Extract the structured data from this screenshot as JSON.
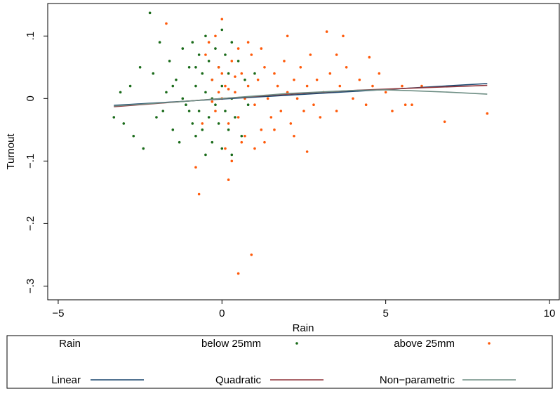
{
  "chart_data": {
    "type": "scatter",
    "x_label": "Rain",
    "y_label": "Turnout",
    "xlim": [
      -5.32,
      10.3
    ],
    "ylim": [
      -0.322,
      0.152
    ],
    "xticks": [
      {
        "value": -5,
        "label": "−5"
      },
      0,
      5,
      10
    ],
    "yticks": [
      {
        "value": -0.3,
        "label": "−.3"
      },
      {
        "value": -0.2,
        "label": "−.2"
      },
      {
        "value": -0.1,
        "label": "−.1"
      },
      0,
      {
        "value": 0.1,
        "label": ".1"
      }
    ],
    "legend_title": "Rain",
    "series": [
      {
        "name": "below 25mm",
        "type": "scatter",
        "color": "#1a6b1a",
        "x": [
          -2.2,
          -3.3,
          -3.0,
          -2.8,
          -2.5,
          -2.4,
          -2.1,
          -1.9,
          -1.8,
          -1.7,
          -1.6,
          -1.5,
          -1.4,
          -1.3,
          -1.2,
          -1.1,
          -1.0,
          -0.9,
          -0.9,
          -0.8,
          -0.8,
          -0.7,
          -0.7,
          -0.6,
          -0.6,
          -0.5,
          -0.5,
          -0.4,
          -0.4,
          -0.3,
          -0.3,
          -0.2,
          -0.2,
          -0.1,
          -0.1,
          0.0,
          0.0,
          0.1,
          0.1,
          0.2,
          0.2,
          0.3,
          0.3,
          0.4,
          0.5,
          0.6,
          0.7,
          0.8,
          1.0,
          -2.7,
          -3.1,
          -2.0,
          -1.5,
          -1.0,
          -0.5,
          0.0,
          0.3,
          -1.2,
          -0.8,
          -0.3
        ],
        "values": [
          0.137,
          -0.03,
          -0.04,
          0.02,
          0.05,
          -0.08,
          0.04,
          0.09,
          -0.02,
          0.01,
          0.06,
          -0.05,
          0.03,
          -0.07,
          0.08,
          -0.01,
          0.05,
          -0.04,
          0.09,
          0.02,
          -0.06,
          0.07,
          -0.02,
          0.04,
          -0.05,
          0.1,
          0.01,
          -0.03,
          0.06,
          -0.07,
          0.03,
          0.08,
          -0.01,
          0.05,
          -0.04,
          0.02,
          -0.08,
          0.07,
          -0.02,
          0.04,
          -0.05,
          0.09,
          0.0,
          -0.03,
          0.06,
          -0.06,
          0.03,
          -0.01,
          0.04,
          -0.06,
          0.01,
          -0.03,
          0.02,
          -0.02,
          -0.09,
          0.11,
          -0.09,
          0.0,
          0.05,
          0.0
        ]
      },
      {
        "name": "above 25mm",
        "type": "scatter",
        "color": "#ff5a0a",
        "x": [
          0.5,
          0.9,
          -0.7,
          0.0,
          -1.7,
          6.8,
          8.1,
          5.6,
          4.5,
          3.2,
          3.7,
          2.0,
          -0.5,
          -0.3,
          -0.2,
          -0.1,
          0.0,
          0.1,
          0.2,
          0.3,
          0.4,
          0.5,
          0.6,
          0.7,
          0.8,
          0.9,
          1.0,
          1.1,
          1.2,
          1.3,
          1.4,
          1.5,
          1.6,
          1.7,
          1.8,
          1.9,
          2.0,
          2.1,
          2.2,
          2.3,
          2.4,
          2.5,
          2.6,
          2.7,
          2.8,
          2.9,
          3.0,
          3.1,
          3.3,
          3.5,
          3.6,
          3.8,
          4.0,
          4.2,
          4.4,
          4.6,
          4.8,
          5.0,
          5.2,
          5.5,
          5.8,
          6.1,
          -0.6,
          -0.4,
          -0.2,
          0.1,
          0.3,
          0.6,
          0.8,
          1.0,
          -0.8,
          0.2,
          1.3,
          1.6,
          2.2,
          0.0,
          -0.1,
          0.2,
          0.4,
          -0.3,
          0.5,
          0.7,
          1.2,
          2.6,
          3.5
        ],
        "values": [
          -0.28,
          -0.25,
          -0.153,
          0.127,
          0.12,
          -0.037,
          -0.024,
          -0.01,
          0.066,
          0.107,
          0.1,
          0.1,
          0.07,
          0.03,
          -0.02,
          0.05,
          0.0,
          0.02,
          -0.04,
          0.06,
          0.01,
          -0.03,
          0.04,
          -0.06,
          0.02,
          0.07,
          -0.01,
          0.03,
          -0.05,
          0.05,
          0.0,
          -0.03,
          0.04,
          0.02,
          -0.02,
          0.06,
          0.01,
          -0.04,
          0.03,
          0.0,
          0.05,
          -0.02,
          0.02,
          0.07,
          -0.01,
          0.03,
          -0.03,
          0.01,
          0.04,
          -0.02,
          0.02,
          0.05,
          0.0,
          0.03,
          -0.01,
          0.02,
          0.04,
          0.01,
          -0.02,
          0.02,
          -0.01,
          0.02,
          -0.04,
          0.09,
          0.1,
          -0.08,
          -0.1,
          -0.07,
          0.09,
          -0.08,
          -0.11,
          -0.13,
          -0.07,
          -0.05,
          -0.06,
          0.04,
          0.01,
          0.015,
          0.035,
          -0.005,
          0.08,
          0.0,
          0.08,
          -0.085,
          0.07
        ]
      },
      {
        "name": "Linear",
        "type": "line",
        "color": "#1a476f",
        "x": [
          -3.3,
          8.1
        ],
        "values": [
          -0.011,
          0.024
        ]
      },
      {
        "name": "Quadratic",
        "type": "line",
        "color": "#90353b",
        "x": [
          -3.3,
          0,
          2,
          4,
          6,
          8.1
        ],
        "values": [
          -0.013,
          0.0,
          0.007,
          0.013,
          0.017,
          0.021
        ]
      },
      {
        "name": "Non−parametric",
        "type": "line",
        "color": "#6e8e84",
        "x": [
          -3.3,
          -1,
          0,
          2,
          4,
          5,
          6,
          7,
          8.1
        ],
        "values": [
          -0.012,
          -0.004,
          0.0,
          0.008,
          0.013,
          0.014,
          0.012,
          0.01,
          0.007
        ]
      }
    ]
  }
}
